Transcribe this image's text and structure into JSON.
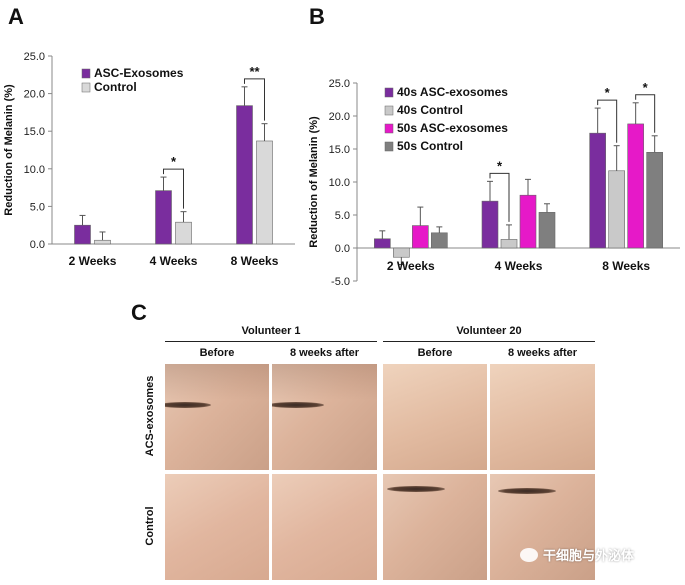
{
  "panels": {
    "a_letter": "A",
    "b_letter": "B",
    "c_letter": "C"
  },
  "chart_data": [
    {
      "type": "bar",
      "ylabel": "Reduction of Melanin (%)",
      "categories": [
        "2 Weeks",
        "4 Weeks",
        "8 Weeks"
      ],
      "ylim": [
        0,
        25
      ],
      "yticks": [
        "0.0",
        "5.0",
        "10.0",
        "15.0",
        "20.0",
        "25.0"
      ],
      "legend_position": "top-left",
      "series": [
        {
          "name": "ASC-Exosomes",
          "color": "#7a2d9e",
          "values": [
            2.5,
            7.1,
            18.4
          ],
          "errors": [
            1.3,
            1.8,
            2.5
          ]
        },
        {
          "name": "Control",
          "color": "#d9d9d9",
          "values": [
            0.5,
            2.9,
            13.7
          ],
          "errors": [
            1.1,
            1.4,
            2.3
          ]
        }
      ],
      "significance": [
        {
          "category": "4 Weeks",
          "label": "*"
        },
        {
          "category": "8 Weeks",
          "label": "**"
        }
      ]
    },
    {
      "type": "bar",
      "ylabel": "Reduction of Melanin (%)",
      "categories": [
        "2 Weeks",
        "4 Weeks",
        "8 Weeks"
      ],
      "ylim": [
        -5,
        25
      ],
      "yticks": [
        "-5.0",
        "0.0",
        "5.0",
        "10.0",
        "15.0",
        "20.0",
        "25.0"
      ],
      "legend_position": "top-left",
      "series": [
        {
          "name": "40s ASC-exosomes",
          "color": "#7a2d9e",
          "values": [
            1.4,
            7.1,
            17.4
          ],
          "errors": [
            1.2,
            3.0,
            3.8
          ]
        },
        {
          "name": "40s Control",
          "color": "#c9c9c9",
          "values": [
            -1.4,
            1.3,
            11.7
          ],
          "errors": [
            1.1,
            2.2,
            3.8
          ]
        },
        {
          "name": "50s ASC-exosomes",
          "color": "#e619c8",
          "values": [
            3.4,
            8.0,
            18.8
          ],
          "errors": [
            2.8,
            2.4,
            3.2
          ]
        },
        {
          "name": "50s Control",
          "color": "#7f7f7f",
          "values": [
            2.3,
            5.4,
            14.5
          ],
          "errors": [
            0.9,
            1.3,
            2.5
          ]
        }
      ],
      "significance": [
        {
          "category": "4 Weeks",
          "label": "*"
        },
        {
          "category": "8 Weeks",
          "label": "*"
        },
        {
          "category": "8 Weeks",
          "label": "*"
        }
      ]
    }
  ],
  "photos": {
    "volunteer_1": "Volunteer 1",
    "volunteer_20": "Volunteer 20",
    "before": "Before",
    "after": "8 weeks after",
    "row_top": "ACS-exosomes",
    "row_bottom": "Control"
  },
  "watermark": "干细胞与外泌体"
}
